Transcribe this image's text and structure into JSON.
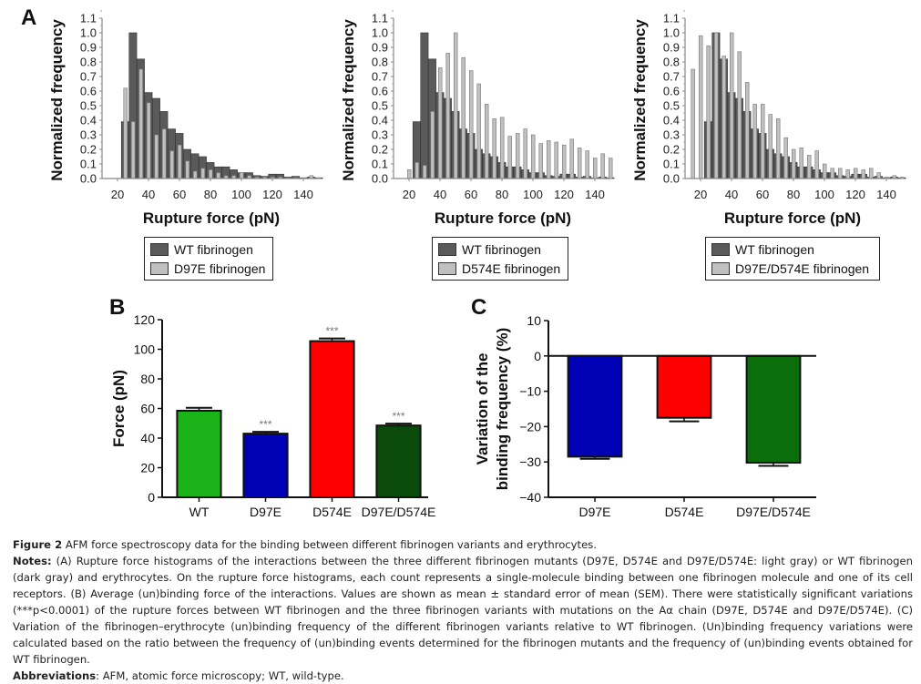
{
  "figure": {
    "panel_labels": {
      "a": "A",
      "b": "B",
      "c": "C"
    }
  },
  "chart_data": [
    {
      "id": "A1",
      "type": "bar",
      "subtype": "overlaid-histogram",
      "title": "",
      "xlabel": "Rupture force (pN)",
      "ylabel": "Normalized frequency",
      "xlim": [
        10,
        150
      ],
      "ylim": [
        0,
        1.1
      ],
      "xticks": [
        20,
        40,
        60,
        80,
        100,
        120,
        140
      ],
      "yticks": [
        "0.0",
        "0.1",
        "0.2",
        "0.3",
        "0.4",
        "0.5",
        "0.6",
        "0.7",
        "0.8",
        "0.9",
        "1.0",
        "1.1"
      ],
      "bin_width": 5,
      "x": [
        25,
        30,
        35,
        40,
        45,
        50,
        55,
        60,
        65,
        70,
        75,
        80,
        85,
        90,
        95,
        100,
        105,
        110,
        115,
        120,
        125,
        130,
        135,
        140,
        145,
        150
      ],
      "series": [
        {
          "name": "WT fibrinogen",
          "color": "#5a5a5a",
          "values": [
            0.39,
            1.0,
            0.82,
            0.59,
            0.55,
            0.46,
            0.34,
            0.31,
            0.2,
            0.17,
            0.15,
            0.11,
            0.08,
            0.08,
            0.06,
            0.04,
            0.04,
            0.02,
            0.015,
            0.03,
            0.03,
            0.01,
            0.015,
            0.005,
            0.01,
            0.005
          ]
        },
        {
          "name": "D97E fibrinogen",
          "color": "#c0c0c0",
          "values": [
            0.62,
            0.39,
            0.75,
            0.52,
            0.3,
            0.34,
            0.19,
            0.23,
            0.12,
            0.05,
            0.07,
            0.06,
            0.04,
            0.02,
            0.02,
            0.04,
            0.02,
            0.01,
            0.01,
            0.01,
            0.01,
            0.005,
            0.005,
            0.005,
            0.02,
            0.005
          ]
        }
      ],
      "legend": [
        "WT fibrinogen",
        "D97E fibrinogen"
      ],
      "legend_placement": "bottom"
    },
    {
      "id": "A2",
      "type": "bar",
      "subtype": "overlaid-histogram",
      "title": "",
      "xlabel": "Rupture force (pN)",
      "ylabel": "Normalized frequency",
      "xlim": [
        10,
        150
      ],
      "ylim": [
        0,
        1.1
      ],
      "xticks": [
        20,
        40,
        60,
        80,
        100,
        120,
        140
      ],
      "yticks": [
        "0.0",
        "0.1",
        "0.2",
        "0.3",
        "0.4",
        "0.5",
        "0.6",
        "0.7",
        "0.8",
        "0.9",
        "1.0",
        "1.1"
      ],
      "bin_width": 5,
      "x": [
        20,
        25,
        30,
        35,
        40,
        45,
        50,
        55,
        60,
        65,
        70,
        75,
        80,
        85,
        90,
        95,
        100,
        105,
        110,
        115,
        120,
        125,
        130,
        135,
        140,
        145,
        150
      ],
      "series": [
        {
          "name": "WT fibrinogen",
          "color": "#5a5a5a",
          "values": [
            0,
            0.39,
            1.0,
            0.82,
            0.59,
            0.55,
            0.46,
            0.34,
            0.31,
            0.2,
            0.17,
            0.15,
            0.11,
            0.08,
            0.08,
            0.06,
            0.04,
            0.04,
            0.02,
            0.015,
            0.03,
            0.03,
            0.01,
            0.015,
            0.005,
            0.01,
            0.005
          ]
        },
        {
          "name": "D574E fibrinogen",
          "color": "#c0c0c0",
          "values": [
            0.06,
            0.11,
            0.09,
            0.46,
            0.76,
            0.86,
            1.0,
            0.83,
            0.74,
            0.65,
            0.51,
            0.41,
            0.42,
            0.29,
            0.31,
            0.34,
            0.3,
            0.24,
            0.26,
            0.25,
            0.23,
            0.27,
            0.21,
            0.19,
            0.14,
            0.17,
            0.14
          ]
        }
      ],
      "legend": [
        "WT fibrinogen",
        "D574E fibrinogen"
      ],
      "legend_placement": "bottom"
    },
    {
      "id": "A3",
      "type": "bar",
      "subtype": "overlaid-histogram",
      "title": "",
      "xlabel": "Rupture force (pN)",
      "ylabel": "Normalized frequency",
      "xlim": [
        10,
        150
      ],
      "ylim": [
        0,
        1.1
      ],
      "xticks": [
        20,
        40,
        60,
        80,
        100,
        120,
        140
      ],
      "yticks": [
        "0.0",
        "0.1",
        "0.2",
        "0.3",
        "0.4",
        "0.5",
        "0.6",
        "0.7",
        "0.8",
        "0.9",
        "1.0",
        "1.1"
      ],
      "bin_width": 5,
      "x": [
        15,
        20,
        25,
        30,
        35,
        40,
        45,
        50,
        55,
        60,
        65,
        70,
        75,
        80,
        85,
        90,
        95,
        100,
        105,
        110,
        115,
        120,
        125,
        130,
        135,
        140,
        145,
        150
      ],
      "series": [
        {
          "name": "WT fibrinogen",
          "color": "#5a5a5a",
          "values": [
            0,
            0,
            0.39,
            1.0,
            0.82,
            0.59,
            0.55,
            0.46,
            0.34,
            0.31,
            0.2,
            0.17,
            0.15,
            0.11,
            0.08,
            0.08,
            0.06,
            0.04,
            0.04,
            0.02,
            0.015,
            0.03,
            0.03,
            0.01,
            0.015,
            0.005,
            0.01,
            0.005
          ]
        },
        {
          "name": "D97E/D574E fibrinogen",
          "color": "#c0c0c0",
          "values": [
            0.75,
            0.98,
            0.91,
            1.0,
            0.84,
            1.0,
            0.87,
            0.66,
            0.51,
            0.51,
            0.44,
            0.41,
            0.28,
            0.2,
            0.21,
            0.16,
            0.19,
            0.1,
            0.07,
            0.07,
            0.06,
            0.07,
            0.06,
            0.07,
            0.04,
            0.01,
            0.02,
            0.01
          ]
        }
      ],
      "legend": [
        "WT fibrinogen",
        "D97E/D574E fibrinogen"
      ],
      "legend_placement": "bottom"
    },
    {
      "id": "B",
      "type": "bar",
      "title": "",
      "xlabel": "",
      "ylabel": "Force (pN)",
      "ylim": [
        0,
        120
      ],
      "yticks": [
        0,
        20,
        40,
        60,
        80,
        100,
        120
      ],
      "categories": [
        "WT",
        "D97E",
        "D574E",
        "D97E/D574E"
      ],
      "values": [
        58.5,
        43,
        105.5,
        48.5
      ],
      "errors": [
        2,
        1.2,
        1.8,
        1.3
      ],
      "colors": [
        "#1ab41a",
        "#0000b4",
        "#ff0000",
        "#0a4a0a"
      ],
      "annotations": [
        "",
        "***",
        "***",
        "***"
      ]
    },
    {
      "id": "C",
      "type": "bar",
      "title": "",
      "xlabel": "",
      "ylabel": "Variation of the binding frequency (%)",
      "ylabel_lines": [
        "Variation of the",
        "binding frequency (%)"
      ],
      "ylim": [
        -40,
        10
      ],
      "yticks": [
        10,
        0,
        -10,
        -20,
        -30,
        -40
      ],
      "ytick_labels": [
        "10",
        "0",
        "−10",
        "−20",
        "−30",
        "−40"
      ],
      "categories": [
        "D97E",
        "D574E",
        "D97E/D574E"
      ],
      "values": [
        -28.5,
        -17.5,
        -30.2
      ],
      "errors": [
        0.6,
        1.0,
        0.9
      ],
      "colors": [
        "#0000b4",
        "#ff0000",
        "#0a6e0a"
      ]
    }
  ],
  "caption": {
    "title_bold": "Figure 2",
    "title_text": " AFM force spectroscopy data for the binding between different fibrinogen variants and erythrocytes.",
    "notes_bold": "Notes:",
    "notes_text": " (A) Rupture force histograms of the interactions between the three different fibrinogen mutants (D97E, D574E and D97E/D574E: light gray) or WT fibrinogen (dark gray) and erythrocytes. On the rupture force histograms, each count represents a single-molecule binding between one fibrinogen molecule and one of its cell receptors. (B) Average (un)binding force of the interactions. Values are shown as mean ± standard error of mean (SEM). There were statistically significant variations (***p<0.0001) of the rupture forces between WT fibrinogen and the three fibrinogen variants with mutations on the Aα chain (D97E, D574E and D97E/D574E). (C) Variation of the fibrinogen–erythrocyte (un)binding frequency of the different fibrinogen variants relative to WT fibrinogen. (Un)binding frequency variations were calculated based on the ratio between the frequency of (un)binding events determined for the fibrinogen mutants and the frequency of (un)binding events obtained for WT fibrinogen.",
    "abbrev_bold": "Abbreviations",
    "abbrev_text": ": AFM, atomic force microscopy; WT, wild-type."
  }
}
